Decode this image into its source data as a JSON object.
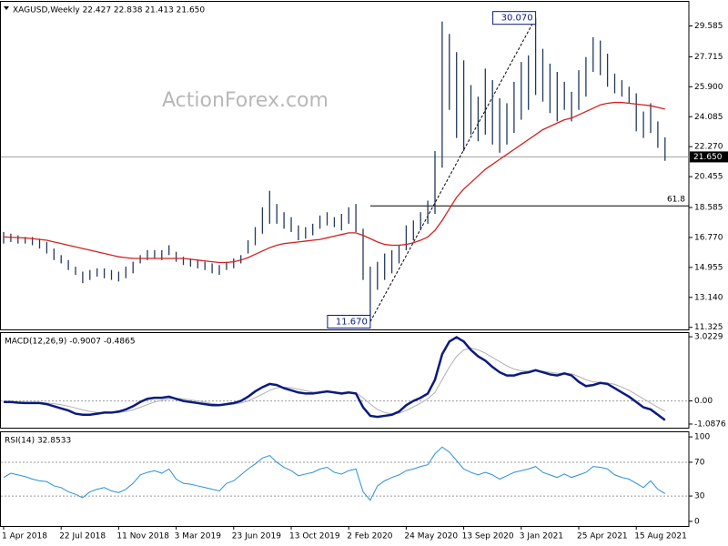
{
  "chart_data": [
    {
      "type": "ohlc",
      "title": "XAGUSD,Weekly  22.427 22.838 21.413 21.650",
      "watermark": "ActionForex.com",
      "color": "#23395d",
      "high": [
        17.1,
        17.0,
        16.9,
        16.8,
        16.8,
        16.7,
        16.5,
        16.1,
        15.7,
        15.4,
        15.0,
        14.7,
        14.8,
        14.9,
        14.9,
        14.8,
        14.7,
        15.0,
        15.3,
        15.7,
        16.0,
        16.0,
        16.0,
        16.3,
        15.9,
        15.6,
        15.5,
        15.4,
        15.3,
        15.2,
        15.1,
        15.3,
        15.5,
        15.7,
        16.6,
        17.4,
        18.6,
        19.6,
        18.8,
        18.3,
        18.0,
        17.5,
        17.4,
        17.6,
        18.1,
        18.3,
        18.0,
        18.2,
        18.6,
        18.8,
        17.3,
        15.0,
        15.3,
        15.8,
        16.0,
        16.3,
        17.5,
        17.8,
        18.3,
        19.0,
        22.0,
        29.85,
        29.1,
        28.0,
        27.5,
        26.0,
        25.3,
        27.0,
        26.3,
        25.2,
        24.9,
        26.2,
        27.4,
        27.8,
        30.07,
        28.2,
        27.3,
        26.8,
        26.2,
        25.6,
        26.9,
        27.7,
        28.9,
        28.7,
        27.9,
        26.7,
        26.3,
        25.9,
        25.5,
        24.4,
        24.9,
        23.8,
        22.838
      ],
      "low": [
        16.4,
        16.5,
        16.4,
        16.4,
        16.3,
        16.1,
        15.8,
        15.4,
        15.2,
        14.8,
        14.5,
        14.0,
        14.2,
        14.4,
        14.3,
        14.2,
        14.1,
        14.3,
        14.6,
        15.2,
        15.4,
        15.5,
        15.4,
        15.7,
        15.3,
        15.1,
        15.0,
        14.9,
        14.8,
        14.6,
        14.5,
        14.8,
        14.9,
        15.2,
        15.8,
        16.3,
        17.0,
        17.6,
        17.6,
        17.3,
        17.1,
        16.6,
        16.7,
        16.9,
        17.3,
        17.5,
        17.4,
        17.2,
        17.6,
        17.1,
        14.2,
        11.67,
        13.6,
        14.2,
        14.6,
        15.2,
        16.0,
        16.6,
        17.2,
        17.6,
        18.2,
        21.0,
        24.5,
        22.8,
        22.0,
        23.0,
        22.6,
        23.0,
        22.4,
        21.9,
        22.4,
        23.1,
        23.9,
        24.5,
        25.4,
        25.0,
        24.3,
        23.8,
        24.5,
        23.8,
        24.5,
        25.3,
        26.8,
        26.6,
        25.9,
        25.5,
        25.3,
        24.9,
        23.2,
        22.8,
        23.1,
        22.2,
        21.413
      ],
      "ma": {
        "color": "#d42020",
        "values": [
          16.8,
          16.78,
          16.76,
          16.74,
          16.7,
          16.65,
          16.6,
          16.5,
          16.4,
          16.3,
          16.2,
          16.1,
          16.0,
          15.9,
          15.8,
          15.7,
          15.6,
          15.55,
          15.5,
          15.5,
          15.5,
          15.5,
          15.5,
          15.5,
          15.5,
          15.5,
          15.45,
          15.4,
          15.35,
          15.3,
          15.25,
          15.25,
          15.3,
          15.4,
          15.55,
          15.75,
          15.95,
          16.15,
          16.3,
          16.4,
          16.45,
          16.5,
          16.55,
          16.6,
          16.65,
          16.75,
          16.85,
          16.95,
          17.05,
          17.05,
          16.9,
          16.7,
          16.5,
          16.35,
          16.3,
          16.3,
          16.35,
          16.45,
          16.6,
          16.8,
          17.2,
          17.8,
          18.5,
          19.2,
          19.7,
          20.1,
          20.5,
          20.9,
          21.2,
          21.5,
          21.8,
          22.1,
          22.4,
          22.7,
          23.0,
          23.3,
          23.5,
          23.7,
          23.9,
          24.0,
          24.2,
          24.4,
          24.6,
          24.8,
          24.9,
          24.95,
          24.95,
          24.9,
          24.85,
          24.8,
          24.75,
          24.65,
          24.55
        ]
      },
      "peak_label": "30.070",
      "trough_label": "11.670",
      "fib_level": {
        "value": 18.685,
        "label": "61.8"
      },
      "last_price": {
        "value": 21.65,
        "label": "21.650"
      },
      "ylim": [
        11.2,
        31.1
      ],
      "yticks": [
        29.585,
        27.715,
        {
          "value": 25.9,
          "label": "25.900"
        },
        24.085,
        {
          "value": 22.27,
          "label": "22.270"
        },
        20.455,
        18.585,
        {
          "value": 16.77,
          "label": "16.770"
        },
        14.955,
        {
          "value": 13.14,
          "label": "13.140"
        },
        11.325
      ]
    },
    {
      "type": "line",
      "title": "MACD(12,26,9) -0.9007 -0.4865",
      "series": [
        {
          "color": "#0a1a80",
          "width": 2.5,
          "values": [
            -0.05,
            -0.05,
            -0.08,
            -0.1,
            -0.1,
            -0.1,
            -0.15,
            -0.25,
            -0.35,
            -0.45,
            -0.6,
            -0.65,
            -0.65,
            -0.6,
            -0.55,
            -0.55,
            -0.5,
            -0.4,
            -0.25,
            -0.05,
            0.1,
            0.15,
            0.15,
            0.2,
            0.1,
            0.0,
            -0.05,
            -0.1,
            -0.15,
            -0.2,
            -0.2,
            -0.15,
            -0.1,
            0.0,
            0.2,
            0.45,
            0.65,
            0.8,
            0.75,
            0.6,
            0.5,
            0.4,
            0.35,
            0.35,
            0.4,
            0.45,
            0.4,
            0.35,
            0.4,
            0.35,
            -0.3,
            -0.7,
            -0.75,
            -0.7,
            -0.65,
            -0.5,
            -0.2,
            0.0,
            0.15,
            0.35,
            1.0,
            2.2,
            2.8,
            3.0,
            2.8,
            2.4,
            2.1,
            1.9,
            1.6,
            1.35,
            1.2,
            1.2,
            1.3,
            1.35,
            1.45,
            1.35,
            1.25,
            1.2,
            1.3,
            1.2,
            0.9,
            0.7,
            0.75,
            0.85,
            0.8,
            0.6,
            0.4,
            0.2,
            -0.05,
            -0.3,
            -0.4,
            -0.65,
            -0.9007
          ]
        },
        {
          "color": "#b0b0b0",
          "width": 1,
          "values": [
            -0.03,
            -0.04,
            -0.05,
            -0.06,
            -0.07,
            -0.08,
            -0.1,
            -0.13,
            -0.18,
            -0.25,
            -0.33,
            -0.42,
            -0.5,
            -0.54,
            -0.56,
            -0.56,
            -0.55,
            -0.5,
            -0.42,
            -0.3,
            -0.17,
            -0.05,
            0.03,
            0.1,
            0.12,
            0.1,
            0.05,
            0.0,
            -0.06,
            -0.12,
            -0.16,
            -0.17,
            -0.15,
            -0.1,
            0.0,
            0.15,
            0.32,
            0.5,
            0.62,
            0.65,
            0.62,
            0.55,
            0.48,
            0.42,
            0.4,
            0.42,
            0.42,
            0.4,
            0.4,
            0.38,
            0.15,
            -0.15,
            -0.4,
            -0.55,
            -0.6,
            -0.58,
            -0.45,
            -0.28,
            -0.1,
            0.1,
            0.4,
            1.0,
            1.6,
            2.1,
            2.4,
            2.5,
            2.4,
            2.25,
            2.05,
            1.85,
            1.65,
            1.5,
            1.42,
            1.4,
            1.4,
            1.4,
            1.35,
            1.3,
            1.3,
            1.28,
            1.15,
            1.0,
            0.9,
            0.88,
            0.85,
            0.78,
            0.65,
            0.5,
            0.3,
            0.1,
            -0.1,
            -0.3,
            -0.4865
          ]
        }
      ],
      "levels": [
        0
      ],
      "ylim": [
        -1.26,
        3.24
      ],
      "yticks": [
        3.0229,
        {
          "value": 0,
          "label": "0.00"
        },
        -1.0876
      ]
    },
    {
      "type": "line",
      "title": "RSI(14) 32.8533",
      "series": [
        {
          "color": "#2a8fd8",
          "width": 1,
          "values": [
            52,
            57,
            55,
            53,
            50,
            48,
            47,
            42,
            40,
            35,
            32,
            28,
            35,
            38,
            40,
            36,
            34,
            38,
            45,
            55,
            58,
            60,
            57,
            62,
            50,
            45,
            44,
            42,
            40,
            38,
            36,
            45,
            48,
            55,
            62,
            68,
            75,
            78,
            70,
            64,
            60,
            54,
            56,
            58,
            62,
            64,
            58,
            56,
            60,
            62,
            35,
            25,
            42,
            48,
            52,
            55,
            60,
            62,
            65,
            67,
            80,
            88,
            82,
            72,
            62,
            58,
            55,
            58,
            55,
            50,
            54,
            58,
            60,
            62,
            65,
            58,
            55,
            52,
            56,
            52,
            55,
            58,
            65,
            64,
            62,
            55,
            52,
            50,
            45,
            40,
            48,
            38,
            32.8533
          ]
        }
      ],
      "levels": [
        30,
        70
      ],
      "ylim": [
        -5.5,
        106.6
      ],
      "yticks": [
        100,
        70,
        30,
        0
      ],
      "categories": [
        "1 Apr 2018",
        null,
        null,
        null,
        null,
        null,
        null,
        null,
        "22 Jul 2018",
        null,
        null,
        null,
        null,
        null,
        null,
        null,
        "11 Nov 2018",
        null,
        null,
        null,
        null,
        null,
        null,
        null,
        "3 Mar 2019",
        null,
        null,
        null,
        null,
        null,
        null,
        null,
        "23 Jun 2019",
        null,
        null,
        null,
        null,
        null,
        null,
        null,
        "13 Oct 2019",
        null,
        null,
        null,
        null,
        null,
        null,
        null,
        "2 Feb 2020",
        null,
        null,
        null,
        null,
        null,
        null,
        null,
        "24 May 2020",
        null,
        null,
        null,
        null,
        null,
        null,
        null,
        "13 Sep 2020",
        null,
        null,
        null,
        null,
        null,
        null,
        null,
        "3 Jan 2021",
        null,
        null,
        null,
        null,
        null,
        null,
        null,
        "25 Apr 2021",
        null,
        null,
        null,
        null,
        null,
        null,
        null,
        "15 Aug 2021",
        null,
        null,
        null,
        null
      ]
    }
  ]
}
